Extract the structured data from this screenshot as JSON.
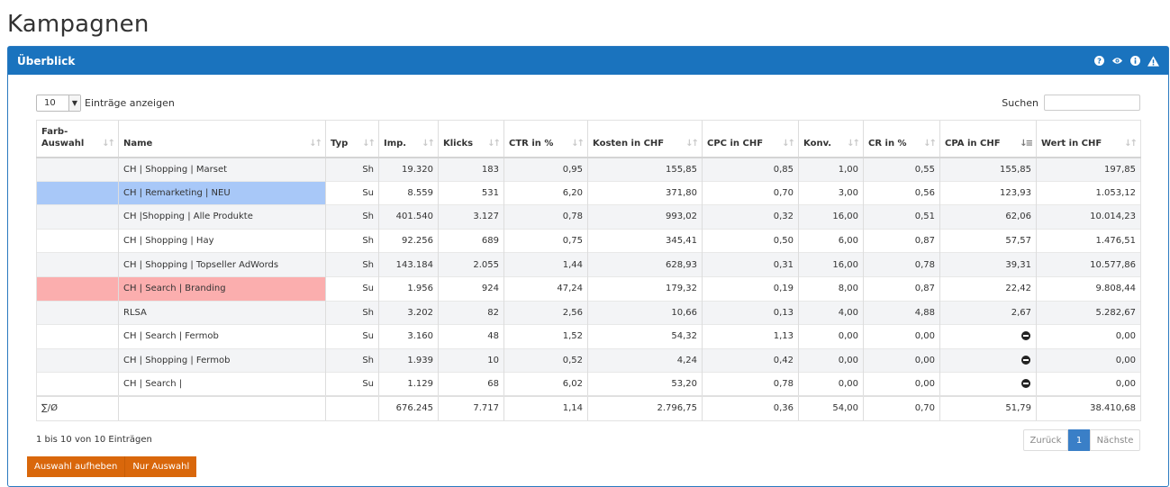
{
  "page": {
    "title": "Kampagnen"
  },
  "panel": {
    "title": "Überblick",
    "icons": [
      "help-icon",
      "eye-icon",
      "info-icon",
      "warning-icon"
    ]
  },
  "controls": {
    "length_value": "10",
    "length_label": "Einträge anzeigen",
    "search_label": "Suchen",
    "search_value": "",
    "search_placeholder": ""
  },
  "table": {
    "columns": [
      {
        "label": "Farb-\nAuswahl",
        "sort": "none"
      },
      {
        "label": "Name",
        "sort": "none"
      },
      {
        "label": "Typ",
        "sort": "none"
      },
      {
        "label": "Imp.",
        "sort": "none"
      },
      {
        "label": "Klicks",
        "sort": "none"
      },
      {
        "label": "CTR in %",
        "sort": "none"
      },
      {
        "label": "Kosten in CHF",
        "sort": "none"
      },
      {
        "label": "CPC in CHF",
        "sort": "none"
      },
      {
        "label": "Konv.",
        "sort": "none"
      },
      {
        "label": "CR in %",
        "sort": "none"
      },
      {
        "label": "CPA in CHF",
        "sort": "desc"
      },
      {
        "label": "Wert in CHF",
        "sort": "none"
      }
    ],
    "rows": [
      {
        "color": "",
        "name": "CH | Shopping | Marset",
        "typ": "Sh",
        "imp": "19.320",
        "klicks": "183",
        "ctr": "0,95",
        "kosten": "155,85",
        "cpc": "0,85",
        "konv": "1,00",
        "cr": "0,55",
        "cpa": "155,85",
        "wert": "197,85"
      },
      {
        "color": "blue",
        "name": "CH | Remarketing | NEU",
        "typ": "Su",
        "imp": "8.559",
        "klicks": "531",
        "ctr": "6,20",
        "kosten": "371,80",
        "cpc": "0,70",
        "konv": "3,00",
        "cr": "0,56",
        "cpa": "123,93",
        "wert": "1.053,12"
      },
      {
        "color": "",
        "name": "CH |Shopping | Alle Produkte",
        "typ": "Sh",
        "imp": "401.540",
        "klicks": "3.127",
        "ctr": "0,78",
        "kosten": "993,02",
        "cpc": "0,32",
        "konv": "16,00",
        "cr": "0,51",
        "cpa": "62,06",
        "wert": "10.014,23"
      },
      {
        "color": "",
        "name": "CH | Shopping | Hay",
        "typ": "Sh",
        "imp": "92.256",
        "klicks": "689",
        "ctr": "0,75",
        "kosten": "345,41",
        "cpc": "0,50",
        "konv": "6,00",
        "cr": "0,87",
        "cpa": "57,57",
        "wert": "1.476,51"
      },
      {
        "color": "",
        "name": "CH | Shopping | Topseller AdWords",
        "typ": "Sh",
        "imp": "143.184",
        "klicks": "2.055",
        "ctr": "1,44",
        "kosten": "628,93",
        "cpc": "0,31",
        "konv": "16,00",
        "cr": "0,78",
        "cpa": "39,31",
        "wert": "10.577,86"
      },
      {
        "color": "pink",
        "name": "CH | Search | Branding",
        "typ": "Su",
        "imp": "1.956",
        "klicks": "924",
        "ctr": "47,24",
        "kosten": "179,32",
        "cpc": "0,19",
        "konv": "8,00",
        "cr": "0,87",
        "cpa": "22,42",
        "wert": "9.808,44"
      },
      {
        "color": "",
        "name": "RLSA",
        "typ": "Sh",
        "imp": "3.202",
        "klicks": "82",
        "ctr": "2,56",
        "kosten": "10,66",
        "cpc": "0,13",
        "konv": "4,00",
        "cr": "4,88",
        "cpa": "2,67",
        "wert": "5.282,67"
      },
      {
        "color": "",
        "name": "CH | Search | Fermob",
        "typ": "Su",
        "imp": "3.160",
        "klicks": "48",
        "ctr": "1,52",
        "kosten": "54,32",
        "cpc": "1,13",
        "konv": "0,00",
        "cr": "0,00",
        "cpa": "",
        "cpa_icon": "minus-circle-icon",
        "wert": "0,00"
      },
      {
        "color": "",
        "name": "CH | Shopping | Fermob",
        "typ": "Sh",
        "imp": "1.939",
        "klicks": "10",
        "ctr": "0,52",
        "kosten": "4,24",
        "cpc": "0,42",
        "konv": "0,00",
        "cr": "0,00",
        "cpa": "",
        "cpa_icon": "minus-circle-icon",
        "wert": "0,00"
      },
      {
        "color": "",
        "name": "CH | Search |",
        "typ": "Su",
        "imp": "1.129",
        "klicks": "68",
        "ctr": "6,02",
        "kosten": "53,20",
        "cpc": "0,78",
        "konv": "0,00",
        "cr": "0,00",
        "cpa": "",
        "cpa_icon": "minus-circle-icon",
        "wert": "0,00"
      }
    ],
    "footer": {
      "label": "∑/Ø",
      "name": "",
      "typ": "",
      "imp": "676.245",
      "klicks": "7.717",
      "ctr": "1,14",
      "kosten": "2.796,75",
      "cpc": "0,36",
      "konv": "54,00",
      "cr": "0,70",
      "cpa": "51,79",
      "wert": "38.410,68"
    }
  },
  "info_text": "1 bis 10 von 10 Einträgen",
  "pagination": {
    "prev": "Zurück",
    "current": "1",
    "next": "Nächste"
  },
  "buttons": {
    "clear_selection": "Auswahl aufheben",
    "only_selection": "Nur Auswahl"
  },
  "colors": {
    "header_blue": "#1a73be",
    "row_blue": "#a8c8f8",
    "row_pink": "#fbaeae",
    "button_orange": "#d9670b"
  }
}
